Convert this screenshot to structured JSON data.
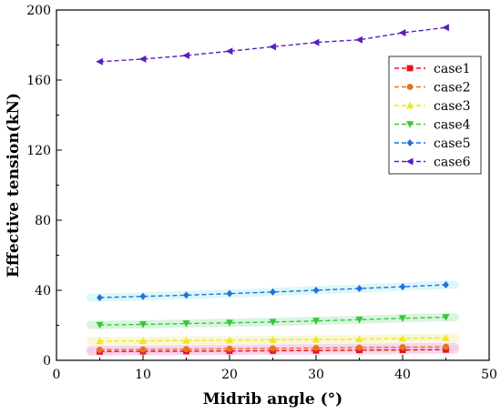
{
  "chart_data": {
    "type": "line",
    "title": "",
    "xlabel": "Midrib angle (°)",
    "ylabel": "Effective tension(kN)",
    "xlim": [
      0,
      50
    ],
    "ylim": [
      0,
      200
    ],
    "x_ticks": [
      0,
      10,
      20,
      30,
      40,
      50
    ],
    "y_ticks": [
      0,
      40,
      80,
      120,
      160,
      200
    ],
    "grid": false,
    "legend_position": "top-right",
    "x": [
      5,
      10,
      15,
      20,
      25,
      30,
      35,
      40,
      45
    ],
    "series": [
      {
        "name": "case1",
        "color": "#e8121b",
        "marker": "square",
        "values": [
          5.0,
          5.1,
          5.2,
          5.3,
          5.5,
          5.6,
          5.8,
          5.9,
          6.1
        ]
      },
      {
        "name": "case2",
        "color": "#e8731e",
        "marker": "circle",
        "values": [
          6.0,
          6.2,
          6.4,
          6.6,
          6.8,
          7.0,
          7.2,
          7.5,
          7.7
        ]
      },
      {
        "name": "case3",
        "color": "#f0e61a",
        "marker": "triangle-up",
        "values": [
          11.0,
          11.1,
          11.3,
          11.5,
          11.7,
          11.9,
          12.1,
          12.5,
          12.8
        ]
      },
      {
        "name": "case4",
        "color": "#36c83a",
        "marker": "triangle-down",
        "values": [
          20.2,
          20.5,
          21.0,
          21.4,
          21.9,
          22.5,
          23.2,
          24.0,
          24.6
        ]
      },
      {
        "name": "case5",
        "color": "#1f6fe0",
        "marker": "diamond",
        "values": [
          35.8,
          36.5,
          37.2,
          38.1,
          39.0,
          40.0,
          41.0,
          42.0,
          43.1
        ]
      },
      {
        "name": "case6",
        "color": "#5b1cc0",
        "marker": "triangle-left",
        "values": [
          170.5,
          172.0,
          174.0,
          176.5,
          179.0,
          181.5,
          183.0,
          187.0,
          190.0
        ]
      }
    ]
  }
}
